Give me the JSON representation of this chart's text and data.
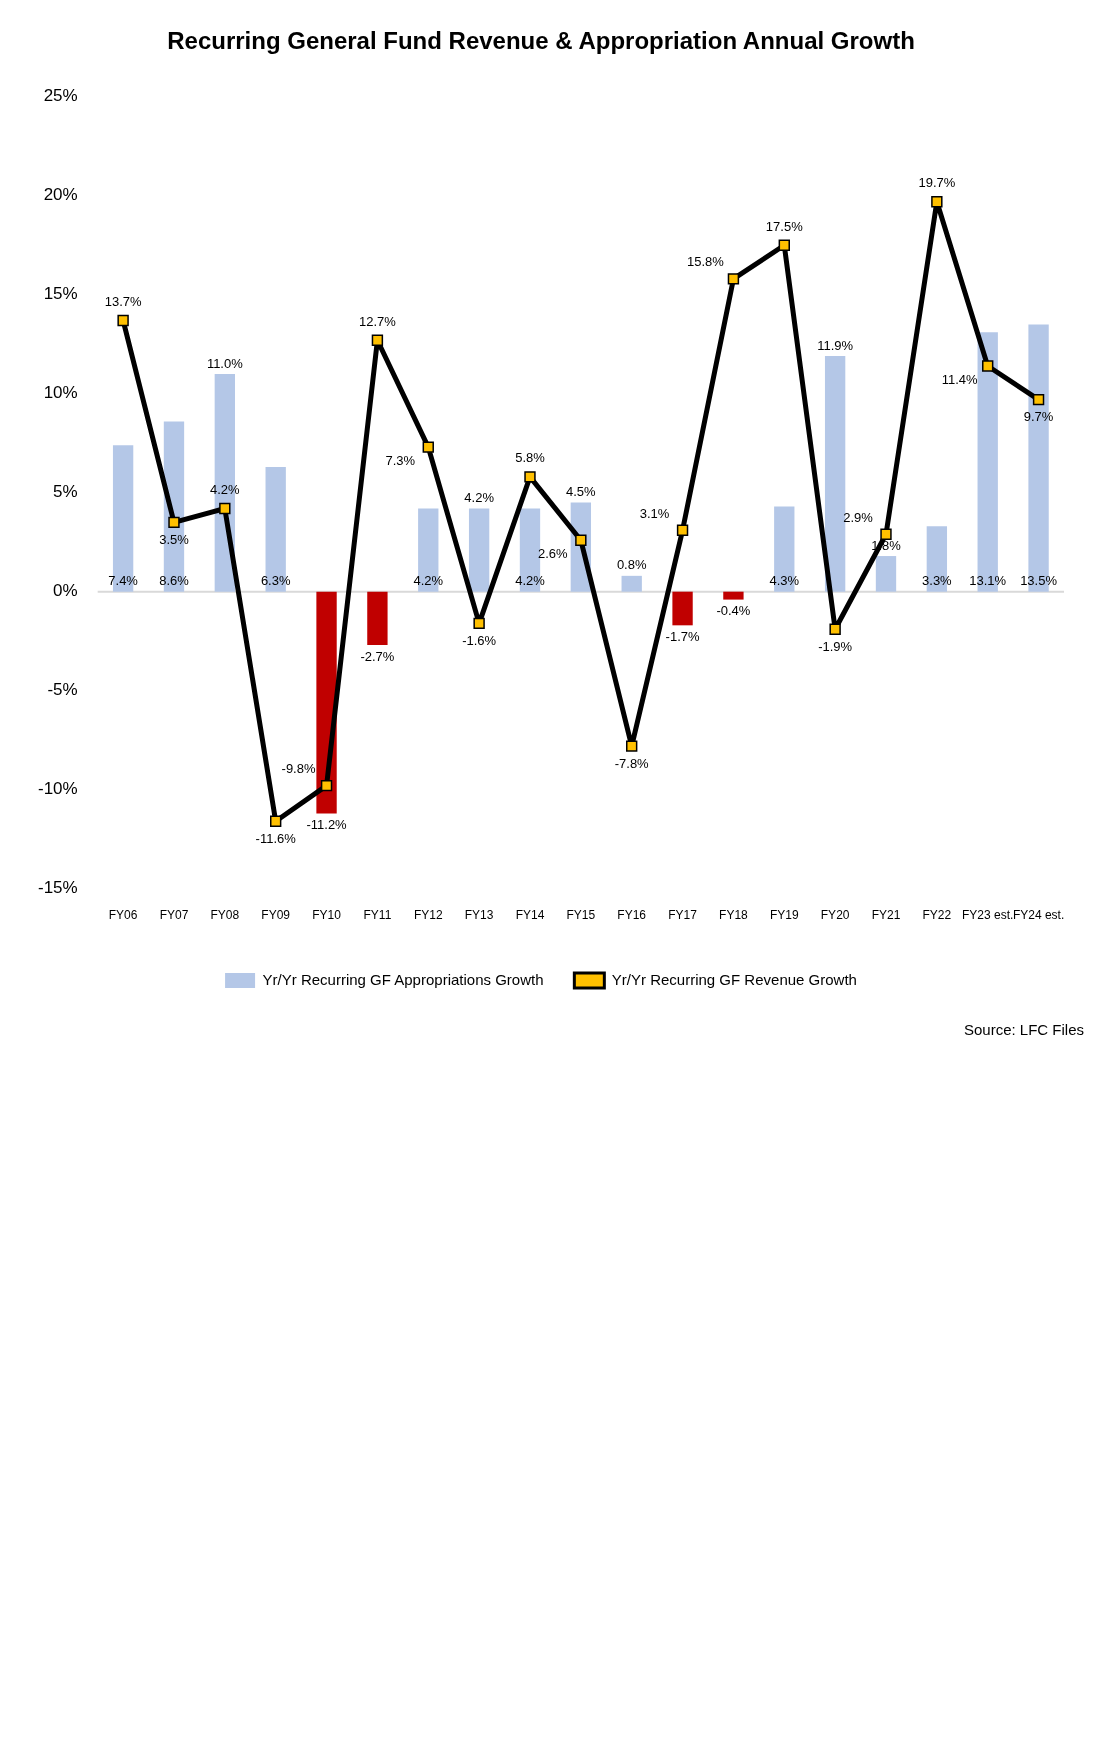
{
  "chart_data": {
    "type": "bar",
    "title": "Recurring General Fund Revenue & Appropriation Annual Growth",
    "categories": [
      "FY06",
      "FY07",
      "FY08",
      "FY09",
      "FY10",
      "FY11",
      "FY12",
      "FY13",
      "FY14",
      "FY15",
      "FY16",
      "FY17",
      "FY18",
      "FY19",
      "FY20",
      "FY21",
      "FY22",
      "FY23 est.",
      "FY24 est."
    ],
    "series": [
      {
        "name": "Yr/Yr Recurring GF Appropriations Growth",
        "color": "#b4c7e7",
        "colors": [
          "#b4c7e7",
          "#b4c7e7",
          "#b4c7e7",
          "#b4c7e7",
          "#c00000",
          "#c00000",
          "#b4c7e7",
          "#b4c7e7",
          "#b4c7e7",
          "#b4c7e7",
          "#b4c7e7",
          "#c00000",
          "#c00000",
          "#b4c7e7",
          "#b4c7e7",
          "#b4c7e7",
          "#b4c7e7",
          "#b4c7e7",
          "#b4c7e7"
        ],
        "values": [
          7.4,
          8.6,
          11.0,
          6.3,
          -11.2,
          -2.7,
          4.2,
          4.2,
          4.2,
          4.5,
          0.8,
          -1.7,
          -0.4,
          4.3,
          11.9,
          1.8,
          3.3,
          13.1,
          13.5
        ],
        "value_labels": [
          "7.4%",
          "8.6%",
          "11.0%",
          "6.3%",
          "-11.2%",
          "-2.7%",
          "4.2%",
          "4.2%",
          "4.2%",
          "4.5%",
          "0.8%",
          "-1.7%",
          "-0.4%",
          "4.3%",
          "11.9%",
          "1.8%",
          "3.3%",
          "13.1%",
          "13.5%"
        ]
      },
      {
        "name": "Yr/Yr Recurring GF Revenue Growth",
        "type": "line",
        "color": "#000000",
        "values": [
          13.7,
          3.5,
          4.2,
          -11.6,
          -9.8,
          12.7,
          7.3,
          -1.6,
          5.8,
          2.6,
          -7.8,
          3.1,
          15.8,
          17.5,
          -1.9,
          2.9,
          19.7,
          11.4,
          9.7
        ],
        "value_labels": [
          "13.7%",
          "3.5%",
          "4.2%",
          "-11.6%",
          "-9.8%",
          "12.7%",
          "7.3%",
          "-1.6%",
          "5.8%",
          "2.6%",
          "-7.8%",
          "3.1%",
          "15.8%",
          "17.5%",
          "-1.9%",
          "2.9%",
          "19.7%",
          "11.4%",
          "9.7%"
        ]
      }
    ],
    "ylim": [
      -15,
      25
    ],
    "yticks": [
      {
        "value": -15,
        "label": "-15%"
      },
      {
        "value": -10,
        "label": "-10%"
      },
      {
        "value": -5,
        "label": "-5%"
      },
      {
        "value": 0,
        "label": "0%"
      },
      {
        "value": 5,
        "label": "5%"
      },
      {
        "value": 10,
        "label": "10%"
      },
      {
        "value": 15,
        "label": "15%"
      },
      {
        "value": 20,
        "label": "20%"
      },
      {
        "value": 25,
        "label": "25%"
      }
    ],
    "marker": "square",
    "legend": "bottom",
    "grid": false,
    "ref_lines": [
      {
        "axis": "y",
        "value": 0,
        "color": "#d9d9d9"
      }
    ],
    "annotations": [
      "Source: LFC Files"
    ]
  }
}
